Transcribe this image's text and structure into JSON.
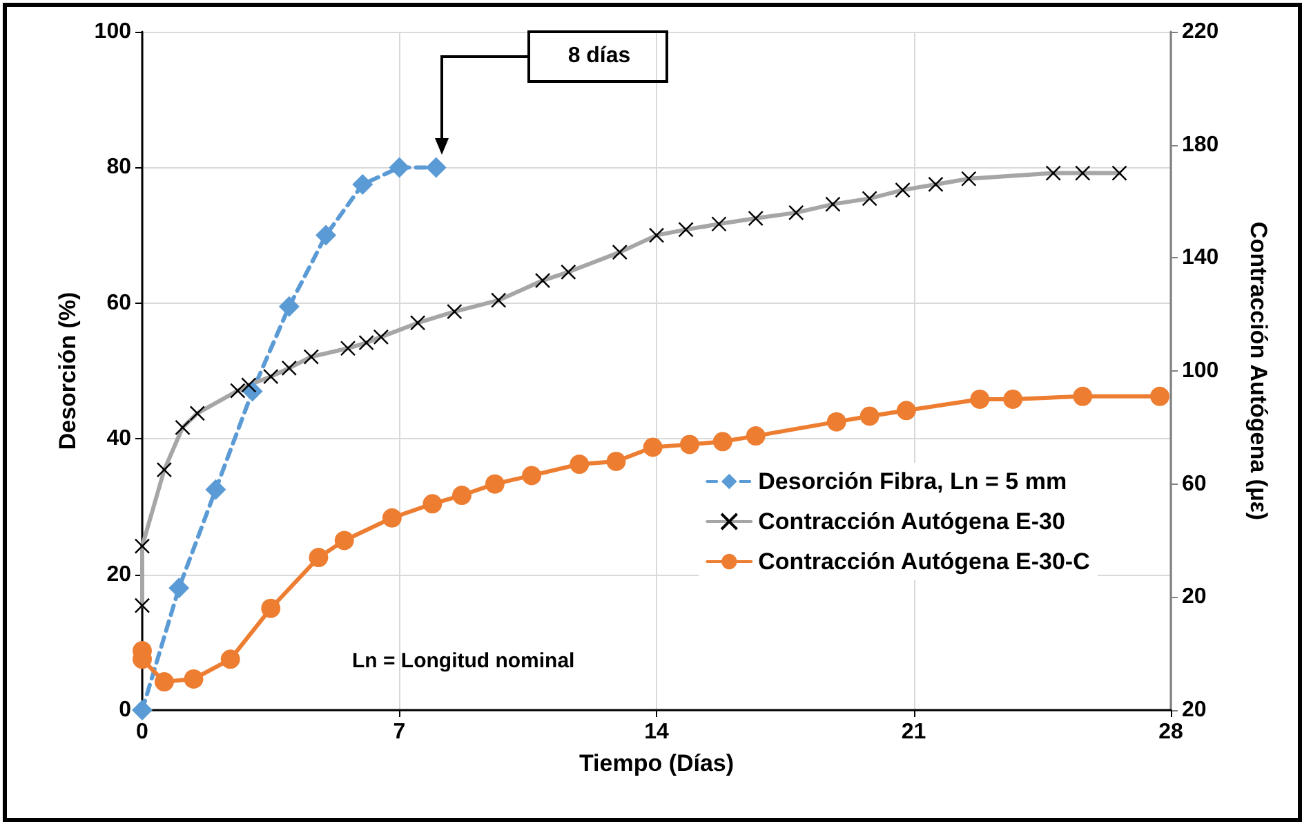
{
  "chart_data": {
    "type": "line",
    "xlabel": "Tiempo (Días)",
    "ylabel": "Desorción (%)",
    "y2label": "Contracción Autógena (με)",
    "xlim": [
      0,
      28
    ],
    "xticks": [
      0,
      7,
      14,
      21,
      28
    ],
    "ylim": [
      0,
      100
    ],
    "yticks": [
      0,
      20,
      40,
      60,
      80,
      100
    ],
    "y2lim": [
      -20,
      220
    ],
    "y2ticks": [
      {
        "value": -20,
        "label": "20"
      },
      20,
      60,
      100,
      140,
      180,
      220
    ],
    "grid": true,
    "legend": "right",
    "series": [
      {
        "name": "Desorción Fibra, Ln = 5 mm",
        "color": "#5b9bd5",
        "marker": "diamond",
        "line_style": "dashed",
        "x": [
          0,
          1,
          2,
          3,
          4,
          5,
          6,
          7,
          8
        ],
        "values": [
          0,
          18,
          32.5,
          47,
          59.5,
          70,
          77.5,
          80,
          80
        ]
      },
      {
        "name": "Contracción Autógena E-30",
        "color": "#a6a6a6",
        "marker": "cross",
        "line_style": "solid",
        "axis": "y2",
        "x": [
          0,
          0,
          0.6,
          1.1,
          1.5,
          2.6,
          2.9,
          3.5,
          4,
          4.6,
          5.6,
          6.1,
          6.5,
          7.5,
          8.5,
          9.7,
          10.9,
          11.6,
          13,
          14,
          14.8,
          15.7,
          16.7,
          17.8,
          18.8,
          19.8,
          20.7,
          21.6,
          22.5,
          24.8,
          25.6,
          26.6
        ],
        "values": [
          17,
          38,
          65,
          80,
          85,
          93,
          95,
          98,
          101,
          105,
          108,
          110,
          112,
          117,
          121,
          125,
          132,
          135,
          142,
          148,
          150,
          152,
          154,
          156,
          159,
          161,
          164,
          166,
          168,
          170,
          170,
          170
        ]
      },
      {
        "name": "Contracción Autógena E-30-C",
        "color": "#ed7d31",
        "marker": "circle",
        "line_style": "solid",
        "axis": "y2",
        "x": [
          0,
          0,
          0.6,
          1.4,
          2.4,
          3.5,
          4.8,
          5.5,
          6.8,
          7.9,
          8.7,
          9.6,
          10.6,
          11.9,
          12.9,
          13.9,
          14.9,
          15.8,
          16.7,
          18.9,
          19.8,
          20.8,
          22.8,
          23.7,
          25.6,
          27.7
        ],
        "values": [
          1,
          -2,
          -10,
          -9,
          -2,
          16,
          34,
          40,
          48,
          53,
          56,
          60,
          63,
          67,
          68,
          73,
          74,
          75,
          77,
          82,
          84,
          86,
          90,
          90,
          91,
          91
        ]
      }
    ],
    "annotations": [
      "8 días",
      "Ln = Longitud nominal"
    ]
  }
}
